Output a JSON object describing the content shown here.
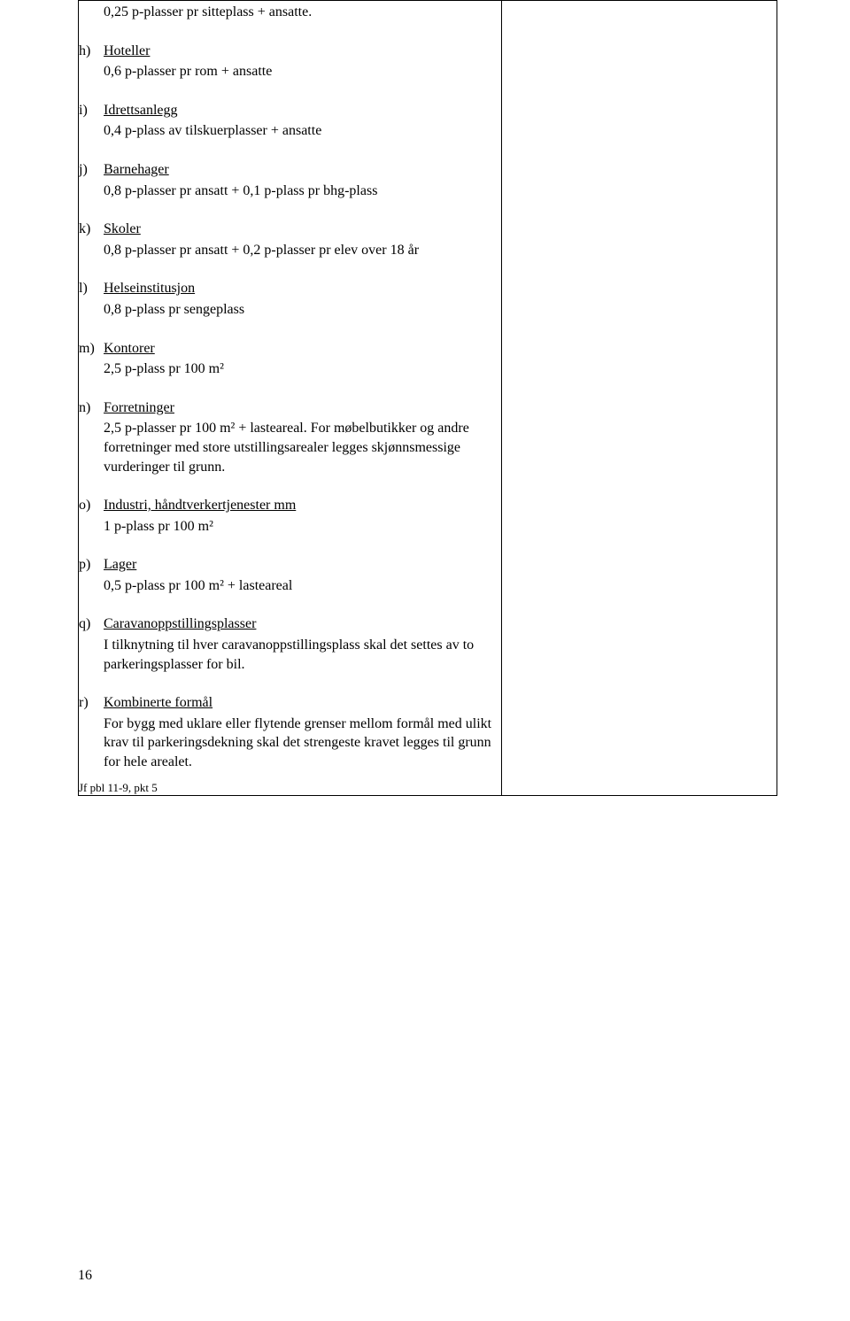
{
  "pageNumber": "16",
  "footnote": "Jf pbl 11-9, pkt 5",
  "items": [
    {
      "marker": "",
      "title": "",
      "desc": "0,25 p-plasser pr sitteplass + ansatte.",
      "indent": true
    },
    {
      "marker": "h)",
      "title": "Hoteller",
      "desc": "0,6 p-plasser pr rom + ansatte"
    },
    {
      "marker": "i)",
      "title": "Idrettsanlegg",
      "desc": "0,4 p-plass av tilskuerplasser + ansatte"
    },
    {
      "marker": "j)",
      "title": "Barnehager",
      "desc": "0,8 p-plasser pr ansatt + 0,1 p-plass pr bhg-plass"
    },
    {
      "marker": "k)",
      "title": "Skoler",
      "desc": "0,8 p-plasser pr ansatt + 0,2 p-plasser pr elev over 18 år"
    },
    {
      "marker": "l)",
      "title": "Helseinstitusjon",
      "desc": "0,8 p-plass pr sengeplass"
    },
    {
      "marker": "m)",
      "title": "Kontorer",
      "desc": "2,5 p-plass pr 100 m²"
    },
    {
      "marker": "n)",
      "title": "Forretninger",
      "desc": "2,5 p-plasser pr 100 m² + lasteareal. For møbelbutikker og andre forretninger med store utstillingsarealer legges skjønnsmessige vurderinger til grunn."
    },
    {
      "marker": "o)",
      "title": "Industri, håndtverkertjenester mm",
      "desc": "1 p-plass pr 100 m²"
    },
    {
      "marker": "p)",
      "title": "Lager",
      "desc": "0,5 p-plass pr 100 m² + lasteareal"
    },
    {
      "marker": "q)",
      "title": "Caravanoppstillingsplasser",
      "desc": "I tilknytning til hver caravanoppstillingsplass skal det settes av to parkeringsplasser for bil."
    },
    {
      "marker": "r)",
      "title": "Kombinerte formål",
      "desc": "For bygg med uklare eller flytende grenser mellom formål med ulikt krav til parkeringsdekning skal det strengeste kravet legges til grunn for hele arealet."
    }
  ]
}
